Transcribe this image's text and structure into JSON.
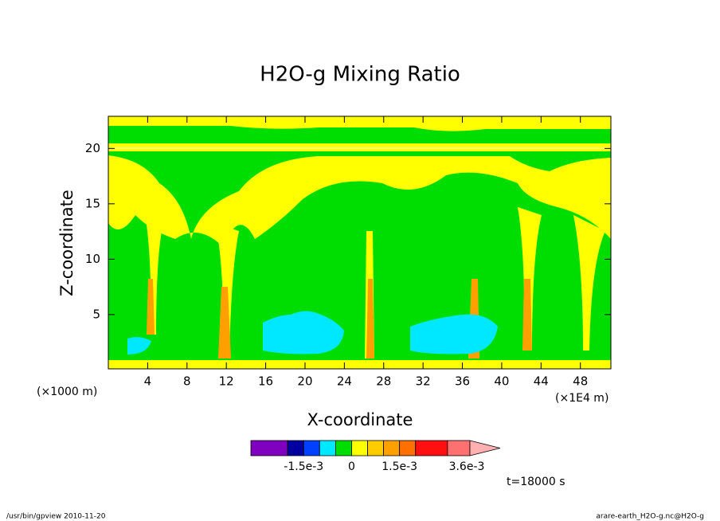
{
  "chart_data": {
    "type": "contour",
    "title": "H2O-g Mixing Ratio",
    "x_label": "X-coordinate",
    "y_label": "Z-coordinate",
    "x_unit_left": "(×1000 m)",
    "x_unit_right": "(×1E4 m)",
    "xlim": [
      0,
      51.1
    ],
    "ylim": [
      0.1,
      22.9
    ],
    "xticks": [
      4,
      8,
      12,
      16,
      20,
      24,
      28,
      32,
      36,
      40,
      44,
      48
    ],
    "yticks": [
      5,
      10,
      15,
      20
    ],
    "colorbar": {
      "lim": [
        -0.00315,
        0.0037
      ],
      "colors": [
        "#8000c0",
        "#0000a0",
        "#0040ff",
        "#00e8ff",
        "#00dd00",
        "#ffff00",
        "#ffcc00",
        "#ffa000",
        "#ff7000",
        "#ff1010",
        "#ff7070"
      ],
      "levels": [
        -0.00315,
        -0.002,
        -0.0015,
        -0.001,
        -0.0005,
        0,
        0.0005,
        0.001,
        0.0015,
        0.002,
        0.003,
        0.0037
      ],
      "extend_color": "#ffb0b0",
      "ticks": [
        {
          "value": -0.0015,
          "label": "-1.5e-3"
        },
        0,
        {
          "value": 0.0015,
          "label": "1.5e-3"
        },
        {
          "value": 0.0036,
          "label": "3.6e-3"
        }
      ]
    },
    "time_label": "t=18000 s",
    "footer_left": "/usr/bin/gpview  2010-11-20",
    "footer_right": "arare-earth_H2O-g.nc@H2O-g"
  }
}
